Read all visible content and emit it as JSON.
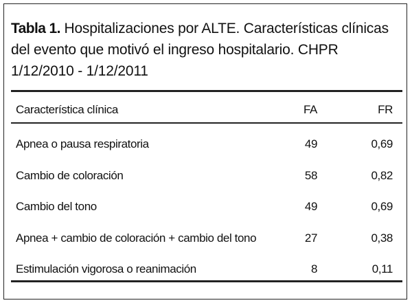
{
  "caption": {
    "label": "Tabla 1.",
    "text": "Hospitalizaciones por ALTE. Características clínicas del evento que motivó el ingreso hospitalario. CHPR 1/12/2010 - 1/12/2011"
  },
  "table": {
    "header": [
      "Característica clínica",
      "FA",
      "FR"
    ],
    "rows": [
      [
        "Apnea o pausa respiratoria",
        "49",
        "0,69"
      ],
      [
        "Cambio de coloración",
        "58",
        "0,82"
      ],
      [
        "Cambio del tono",
        "49",
        "0,69"
      ],
      [
        "Apnea + cambio de coloración + cambio del tono",
        "27",
        "0,38"
      ],
      [
        "Estimulación vigorosa o reanimación",
        "8",
        "0,11"
      ]
    ]
  }
}
